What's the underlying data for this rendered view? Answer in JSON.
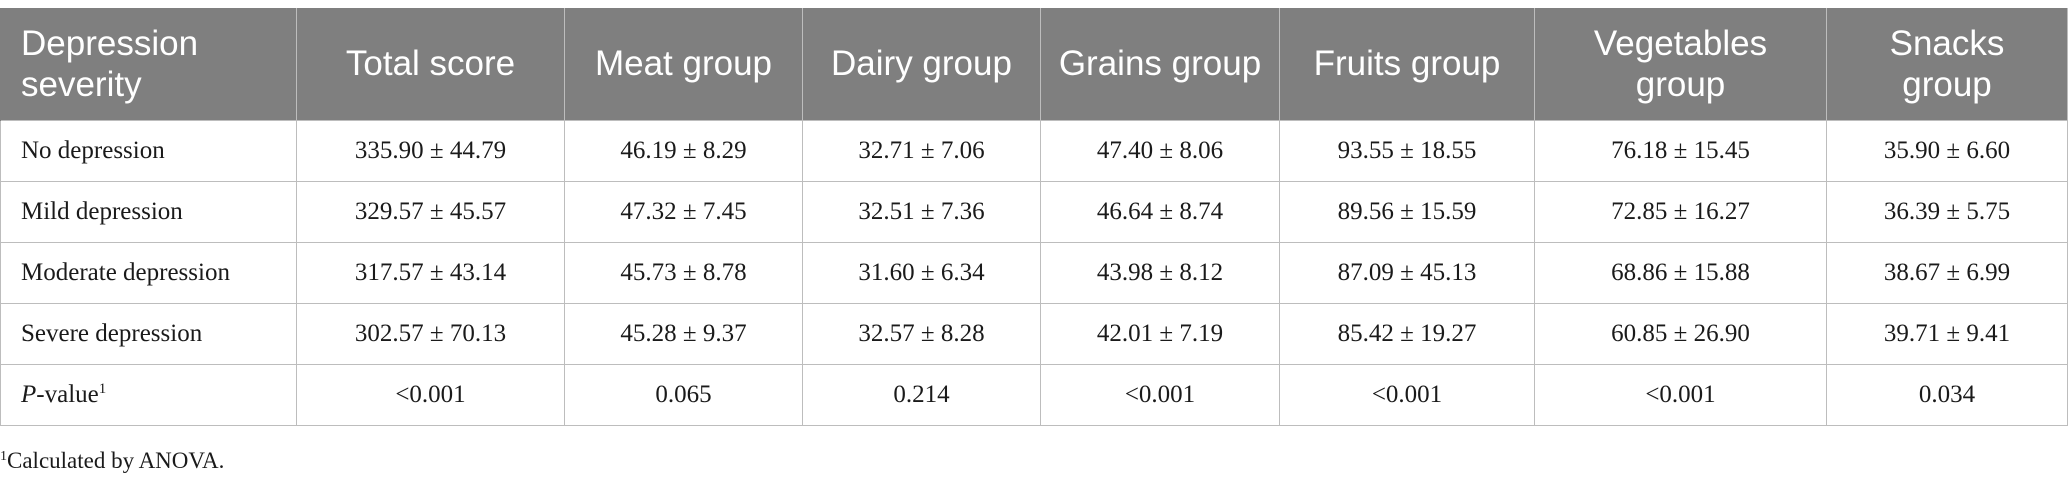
{
  "table": {
    "headers": [
      "Depression severity",
      "Total score",
      "Meat group",
      "Dairy group",
      "Grains group",
      "Fruits group",
      "Vegetables group",
      "Snacks group"
    ],
    "rows": [
      {
        "label": "No depression",
        "values": [
          "335.90 ± 44.79",
          "46.19 ± 8.29",
          "32.71 ± 7.06",
          "47.40 ± 8.06",
          "93.55 ± 18.55",
          "76.18 ± 15.45",
          "35.90 ± 6.60"
        ]
      },
      {
        "label": "Mild depression",
        "values": [
          "329.57 ± 45.57",
          "47.32 ± 7.45",
          "32.51 ± 7.36",
          "46.64 ± 8.74",
          "89.56 ± 15.59",
          "72.85 ± 16.27",
          "36.39 ± 5.75"
        ]
      },
      {
        "label": "Moderate depression",
        "values": [
          "317.57 ± 43.14",
          "45.73 ± 8.78",
          "31.60 ± 6.34",
          "43.98 ± 8.12",
          "87.09 ± 45.13",
          "68.86 ± 15.88",
          "38.67 ± 6.99"
        ]
      },
      {
        "label": "Severe depression",
        "values": [
          "302.57 ± 70.13",
          "45.28 ± 9.37",
          "32.57 ± 8.28",
          "42.01 ± 7.19",
          "85.42 ± 19.27",
          "60.85 ± 26.90",
          "39.71 ± 9.41"
        ]
      }
    ],
    "pvalue_row": {
      "label_italic": "P",
      "label_rest": "-value",
      "label_sup": "1",
      "values": [
        "<0.001",
        "0.065",
        "0.214",
        "<0.001",
        "<0.001",
        "<0.001",
        "0.034"
      ]
    }
  },
  "footnote": {
    "sup": "1",
    "text": "Calculated by ANOVA."
  },
  "colors": {
    "header_bg": "#7f7f7f",
    "header_text": "#ffffff",
    "grid": "#bdbdbd"
  }
}
